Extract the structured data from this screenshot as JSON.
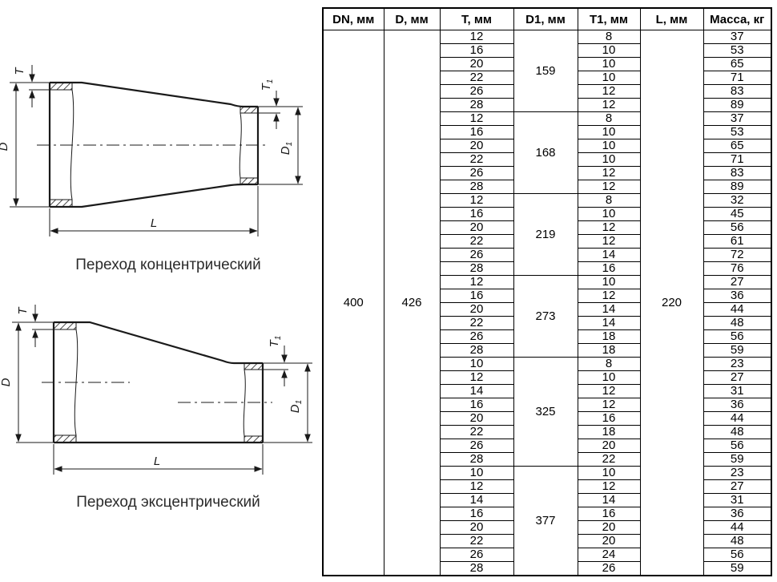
{
  "colors": {
    "ink": "#1a1a1a",
    "table_border": "#000000",
    "background": "#ffffff"
  },
  "diagrams": [
    {
      "caption": "Переход концентрический",
      "labels": {
        "t": "T",
        "t1_base": "T",
        "t1_sub": "1",
        "d": "D",
        "d1_base": "D",
        "d1_sub": "1",
        "l": "L"
      }
    },
    {
      "caption": "Переход эксцентрический",
      "labels": {
        "t": "T",
        "t1_base": "T",
        "t1_sub": "1",
        "d": "D",
        "d1_base": "D",
        "d1_sub": "1",
        "l": "L"
      }
    }
  ],
  "table": {
    "headers": [
      "DN, мм",
      "D, мм",
      "T, мм",
      "D1, мм",
      "T1, мм",
      "L, мм",
      "Масса, кг"
    ],
    "shared": {
      "dn": "400",
      "d": "426",
      "l": "220"
    },
    "groups": [
      {
        "d1": "159",
        "rows": [
          {
            "t": "12",
            "t1": "8",
            "mass": "37"
          },
          {
            "t": "16",
            "t1": "10",
            "mass": "53"
          },
          {
            "t": "20",
            "t1": "10",
            "mass": "65"
          },
          {
            "t": "22",
            "t1": "10",
            "mass": "71"
          },
          {
            "t": "26",
            "t1": "12",
            "mass": "83"
          },
          {
            "t": "28",
            "t1": "12",
            "mass": "89"
          }
        ]
      },
      {
        "d1": "168",
        "rows": [
          {
            "t": "12",
            "t1": "8",
            "mass": "37"
          },
          {
            "t": "16",
            "t1": "10",
            "mass": "53"
          },
          {
            "t": "20",
            "t1": "10",
            "mass": "65"
          },
          {
            "t": "22",
            "t1": "10",
            "mass": "71"
          },
          {
            "t": "26",
            "t1": "12",
            "mass": "83"
          },
          {
            "t": "28",
            "t1": "12",
            "mass": "89"
          }
        ]
      },
      {
        "d1": "219",
        "rows": [
          {
            "t": "12",
            "t1": "8",
            "mass": "32"
          },
          {
            "t": "16",
            "t1": "10",
            "mass": "45"
          },
          {
            "t": "20",
            "t1": "12",
            "mass": "56"
          },
          {
            "t": "22",
            "t1": "12",
            "mass": "61"
          },
          {
            "t": "26",
            "t1": "14",
            "mass": "72"
          },
          {
            "t": "28",
            "t1": "16",
            "mass": "76"
          }
        ]
      },
      {
        "d1": "273",
        "rows": [
          {
            "t": "12",
            "t1": "10",
            "mass": "27"
          },
          {
            "t": "16",
            "t1": "12",
            "mass": "36"
          },
          {
            "t": "20",
            "t1": "14",
            "mass": "44"
          },
          {
            "t": "22",
            "t1": "14",
            "mass": "48"
          },
          {
            "t": "26",
            "t1": "18",
            "mass": "56"
          },
          {
            "t": "28",
            "t1": "18",
            "mass": "59"
          }
        ]
      },
      {
        "d1": "325",
        "rows": [
          {
            "t": "10",
            "t1": "8",
            "mass": "23"
          },
          {
            "t": "12",
            "t1": "10",
            "mass": "27"
          },
          {
            "t": "14",
            "t1": "12",
            "mass": "31"
          },
          {
            "t": "16",
            "t1": "12",
            "mass": "36"
          },
          {
            "t": "20",
            "t1": "16",
            "mass": "44"
          },
          {
            "t": "22",
            "t1": "18",
            "mass": "48"
          },
          {
            "t": "26",
            "t1": "20",
            "mass": "56"
          },
          {
            "t": "28",
            "t1": "22",
            "mass": "59"
          }
        ]
      },
      {
        "d1": "377",
        "rows": [
          {
            "t": "10",
            "t1": "10",
            "mass": "23"
          },
          {
            "t": "12",
            "t1": "12",
            "mass": "27"
          },
          {
            "t": "14",
            "t1": "14",
            "mass": "31"
          },
          {
            "t": "16",
            "t1": "16",
            "mass": "36"
          },
          {
            "t": "20",
            "t1": "20",
            "mass": "44"
          },
          {
            "t": "22",
            "t1": "20",
            "mass": "48"
          },
          {
            "t": "26",
            "t1": "24",
            "mass": "56"
          },
          {
            "t": "28",
            "t1": "26",
            "mass": "59"
          }
        ]
      }
    ]
  }
}
